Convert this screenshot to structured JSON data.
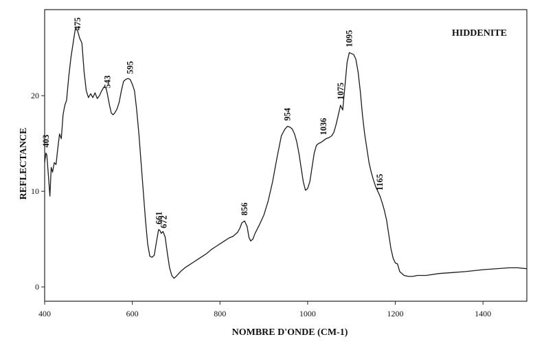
{
  "chart_data": {
    "type": "line",
    "title": "HIDDENITE",
    "xlabel": "NOMBRE D'ONDE (CM-1)",
    "ylabel": "REFLECTANCE",
    "xlim": [
      400,
      1500
    ],
    "ylim": [
      -1.5,
      29
    ],
    "x_ticks": [
      400,
      600,
      800,
      1000,
      1200,
      1400
    ],
    "y_ticks": [
      0,
      10,
      20
    ],
    "grid": false,
    "colors": {
      "line": "#1a1a1a",
      "axis": "#222222"
    },
    "series": [
      {
        "x": [
          400,
          403,
          405,
          408,
          412,
          415,
          418,
          422,
          426,
          430,
          434,
          438,
          442,
          446,
          450,
          455,
          460,
          465,
          470,
          475,
          480,
          485,
          490,
          495,
          500,
          505,
          510,
          515,
          520,
          525,
          530,
          535,
          540,
          543,
          548,
          552,
          556,
          560,
          565,
          570,
          575,
          580,
          585,
          590,
          595,
          600,
          605,
          610,
          615,
          620,
          625,
          630,
          635,
          640,
          645,
          650,
          655,
          660,
          663,
          666,
          670,
          675,
          680,
          685,
          690,
          695,
          700,
          710,
          720,
          730,
          740,
          750,
          760,
          770,
          780,
          790,
          800,
          810,
          820,
          830,
          840,
          845,
          850,
          856,
          862,
          866,
          870,
          875,
          880,
          890,
          900,
          910,
          920,
          930,
          940,
          948,
          954,
          960,
          965,
          970,
          975,
          980,
          985,
          990,
          995,
          1000,
          1005,
          1010,
          1015,
          1020,
          1025,
          1030,
          1036,
          1042,
          1048,
          1055,
          1060,
          1065,
          1070,
          1075,
          1080,
          1085,
          1090,
          1095,
          1100,
          1105,
          1110,
          1115,
          1120,
          1125,
          1130,
          1135,
          1140,
          1145,
          1150,
          1155,
          1160,
          1165,
          1170,
          1175,
          1180,
          1185,
          1190,
          1195,
          1200,
          1205,
          1210,
          1220,
          1230,
          1240,
          1250,
          1270,
          1300,
          1330,
          1360,
          1400,
          1430,
          1460,
          1480,
          1500
        ],
        "y": [
          13,
          14,
          13.8,
          12,
          9.5,
          12.5,
          12,
          13,
          12.8,
          14.5,
          16,
          15.5,
          18,
          19,
          19.5,
          22,
          24,
          25.5,
          27,
          26.8,
          26,
          25.5,
          22.5,
          20.5,
          19.8,
          20.2,
          19.8,
          20.3,
          19.7,
          20,
          20.5,
          20.9,
          20.8,
          20.2,
          19,
          18.2,
          18,
          18.2,
          18.6,
          19.3,
          20.5,
          21.5,
          21.7,
          21.8,
          21.7,
          21.2,
          20.5,
          18.5,
          16,
          13,
          10,
          7,
          4.5,
          3.2,
          3.1,
          3.3,
          4.7,
          6,
          5.9,
          5.6,
          5.8,
          5.2,
          3.5,
          2,
          1.2,
          0.9,
          1.1,
          1.6,
          2,
          2.3,
          2.6,
          2.9,
          3.2,
          3.5,
          3.9,
          4.2,
          4.5,
          4.8,
          5.1,
          5.3,
          5.7,
          6.1,
          6.7,
          6.9,
          6.3,
          5.2,
          4.8,
          5,
          5.6,
          6.5,
          7.5,
          9,
          11,
          13.5,
          15.8,
          16.5,
          16.8,
          16.7,
          16.5,
          16,
          15.2,
          14,
          12.5,
          11,
          10.1,
          10.3,
          11,
          12.5,
          14,
          14.8,
          15,
          15.1,
          15.3,
          15.5,
          15.6,
          15.8,
          16.2,
          17,
          18,
          19,
          18.5,
          21,
          23.5,
          24.5,
          24.4,
          24.3,
          23.8,
          22.5,
          20.5,
          18,
          16,
          14.5,
          13,
          12,
          11.2,
          10.5,
          10,
          9.5,
          8.8,
          8,
          7,
          5.5,
          4,
          3,
          2.5,
          2.4,
          1.6,
          1.2,
          1.1,
          1.1,
          1.2,
          1.2,
          1.4,
          1.5,
          1.6,
          1.8,
          1.9,
          2,
          2,
          1.9
        ]
      }
    ],
    "annotations": [
      {
        "text": "403",
        "x": 403
      },
      {
        "text": "475",
        "x": 475
      },
      {
        "text": "543",
        "x": 543
      },
      {
        "text": "595",
        "x": 595
      },
      {
        "text": "661",
        "x": 661
      },
      {
        "text": "672",
        "x": 672
      },
      {
        "text": "856",
        "x": 856
      },
      {
        "text": "954",
        "x": 954
      },
      {
        "text": "1036",
        "x": 1036
      },
      {
        "text": "1075",
        "x": 1075
      },
      {
        "text": "1095",
        "x": 1095
      },
      {
        "text": "1165",
        "x": 1165
      }
    ]
  }
}
